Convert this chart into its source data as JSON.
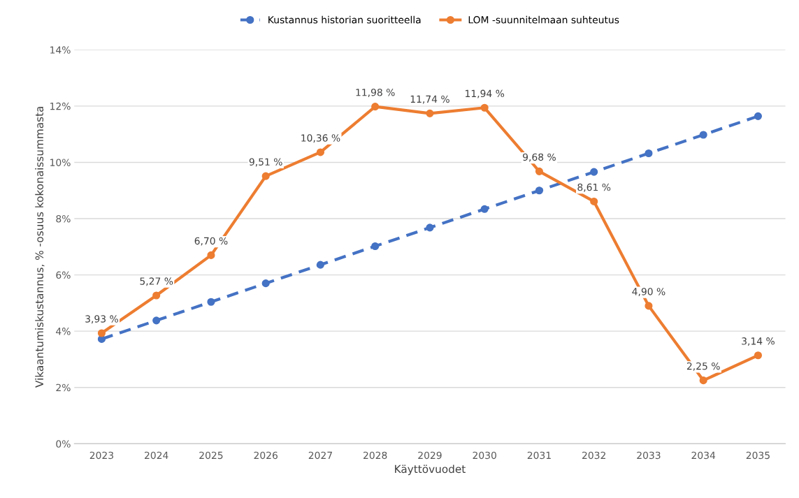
{
  "chart_data": {
    "type": "line",
    "xlabel": "Käyttövuodet",
    "ylabel": "Vikaantumiskustannus, % -osuus kokonaissummasta",
    "categories": [
      "2023",
      "2024",
      "2025",
      "2026",
      "2027",
      "2028",
      "2029",
      "2030",
      "2031",
      "2032",
      "2033",
      "2034",
      "2035"
    ],
    "series": [
      {
        "name": "Kustannus historian suoritteella",
        "color": "#4472c4",
        "line_style": "dashed",
        "values": [
          3.72,
          4.38,
          5.04,
          5.7,
          6.36,
          7.02,
          7.68,
          8.34,
          9.0,
          9.66,
          10.32,
          10.98,
          11.64
        ]
      },
      {
        "name": "LOM -suunnitelmaan suhteutus",
        "color": "#ed7d31",
        "line_style": "solid",
        "values": [
          3.93,
          5.27,
          6.7,
          9.51,
          10.36,
          11.98,
          11.74,
          11.94,
          9.68,
          8.61,
          4.9,
          2.25,
          3.14
        ],
        "value_labels": [
          "3,93 %",
          "5,27 %",
          "6,70 %",
          "9,51 %",
          "10,36 %",
          "11,98 %",
          "11,74 %",
          "11,94 %",
          "9,68 %",
          "8,61 %",
          "4,90 %",
          "2,25 %",
          "3,14 %"
        ]
      }
    ],
    "ylim": [
      0,
      14
    ],
    "yticks": [
      {
        "value": 0,
        "label": "0%"
      },
      {
        "value": 2,
        "label": "2%"
      },
      {
        "value": 4,
        "label": "4%"
      },
      {
        "value": 6,
        "label": "6%"
      },
      {
        "value": 8,
        "label": "8%"
      },
      {
        "value": 10,
        "label": "10%"
      },
      {
        "value": 12,
        "label": "12%"
      },
      {
        "value": 14,
        "label": "14%"
      }
    ],
    "grid": "y",
    "legend": "top",
    "marker": "circle"
  }
}
